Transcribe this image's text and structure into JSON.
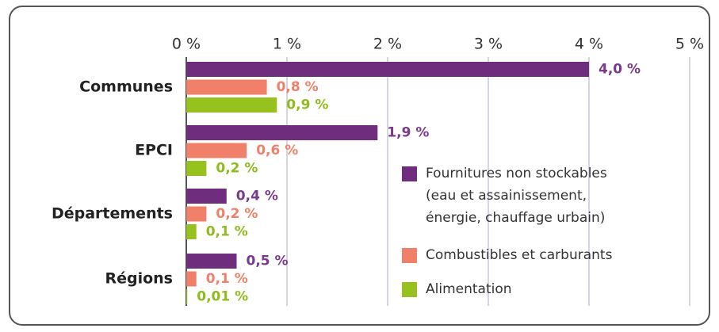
{
  "chart_data": {
    "type": "bar",
    "orientation": "horizontal",
    "categories": [
      "Communes",
      "EPCI",
      "Départements",
      "Régions"
    ],
    "series": [
      {
        "name": "Fournitures non stockables\n(eau et assainissement,\nénergie, chauffage urbain)",
        "color": "#6e2d7d",
        "label_color": "#7a3a8c",
        "values": [
          4.0,
          1.9,
          0.4,
          0.5
        ],
        "value_labels": [
          "4,0 %",
          "1,9 %",
          "0,4 %",
          "0,5 %"
        ]
      },
      {
        "name": "Combustibles et carburants",
        "color": "#f0806a",
        "label_color": "#f0806a",
        "values": [
          0.8,
          0.6,
          0.2,
          0.1
        ],
        "value_labels": [
          "0,8 %",
          "0,6 %",
          "0,2 %",
          "0,1 %"
        ]
      },
      {
        "name": "Alimentation",
        "color": "#96c11f",
        "label_color": "#8fbb1c",
        "values": [
          0.9,
          0.2,
          0.1,
          0.01
        ],
        "value_labels": [
          "0,9 %",
          "0,2 %",
          "0,1 %",
          "0,01 %"
        ]
      }
    ],
    "xlim": [
      0,
      5
    ],
    "xticks": [
      {
        "value": 0,
        "label": "0 %"
      },
      {
        "value": 1,
        "label": "1 %"
      },
      {
        "value": 2,
        "label": "2 %"
      },
      {
        "value": 3,
        "label": "3 %"
      },
      {
        "value": 4,
        "label": "4 %"
      },
      {
        "value": 5,
        "label": "5 %"
      }
    ],
    "grid": true,
    "legend": "right"
  }
}
